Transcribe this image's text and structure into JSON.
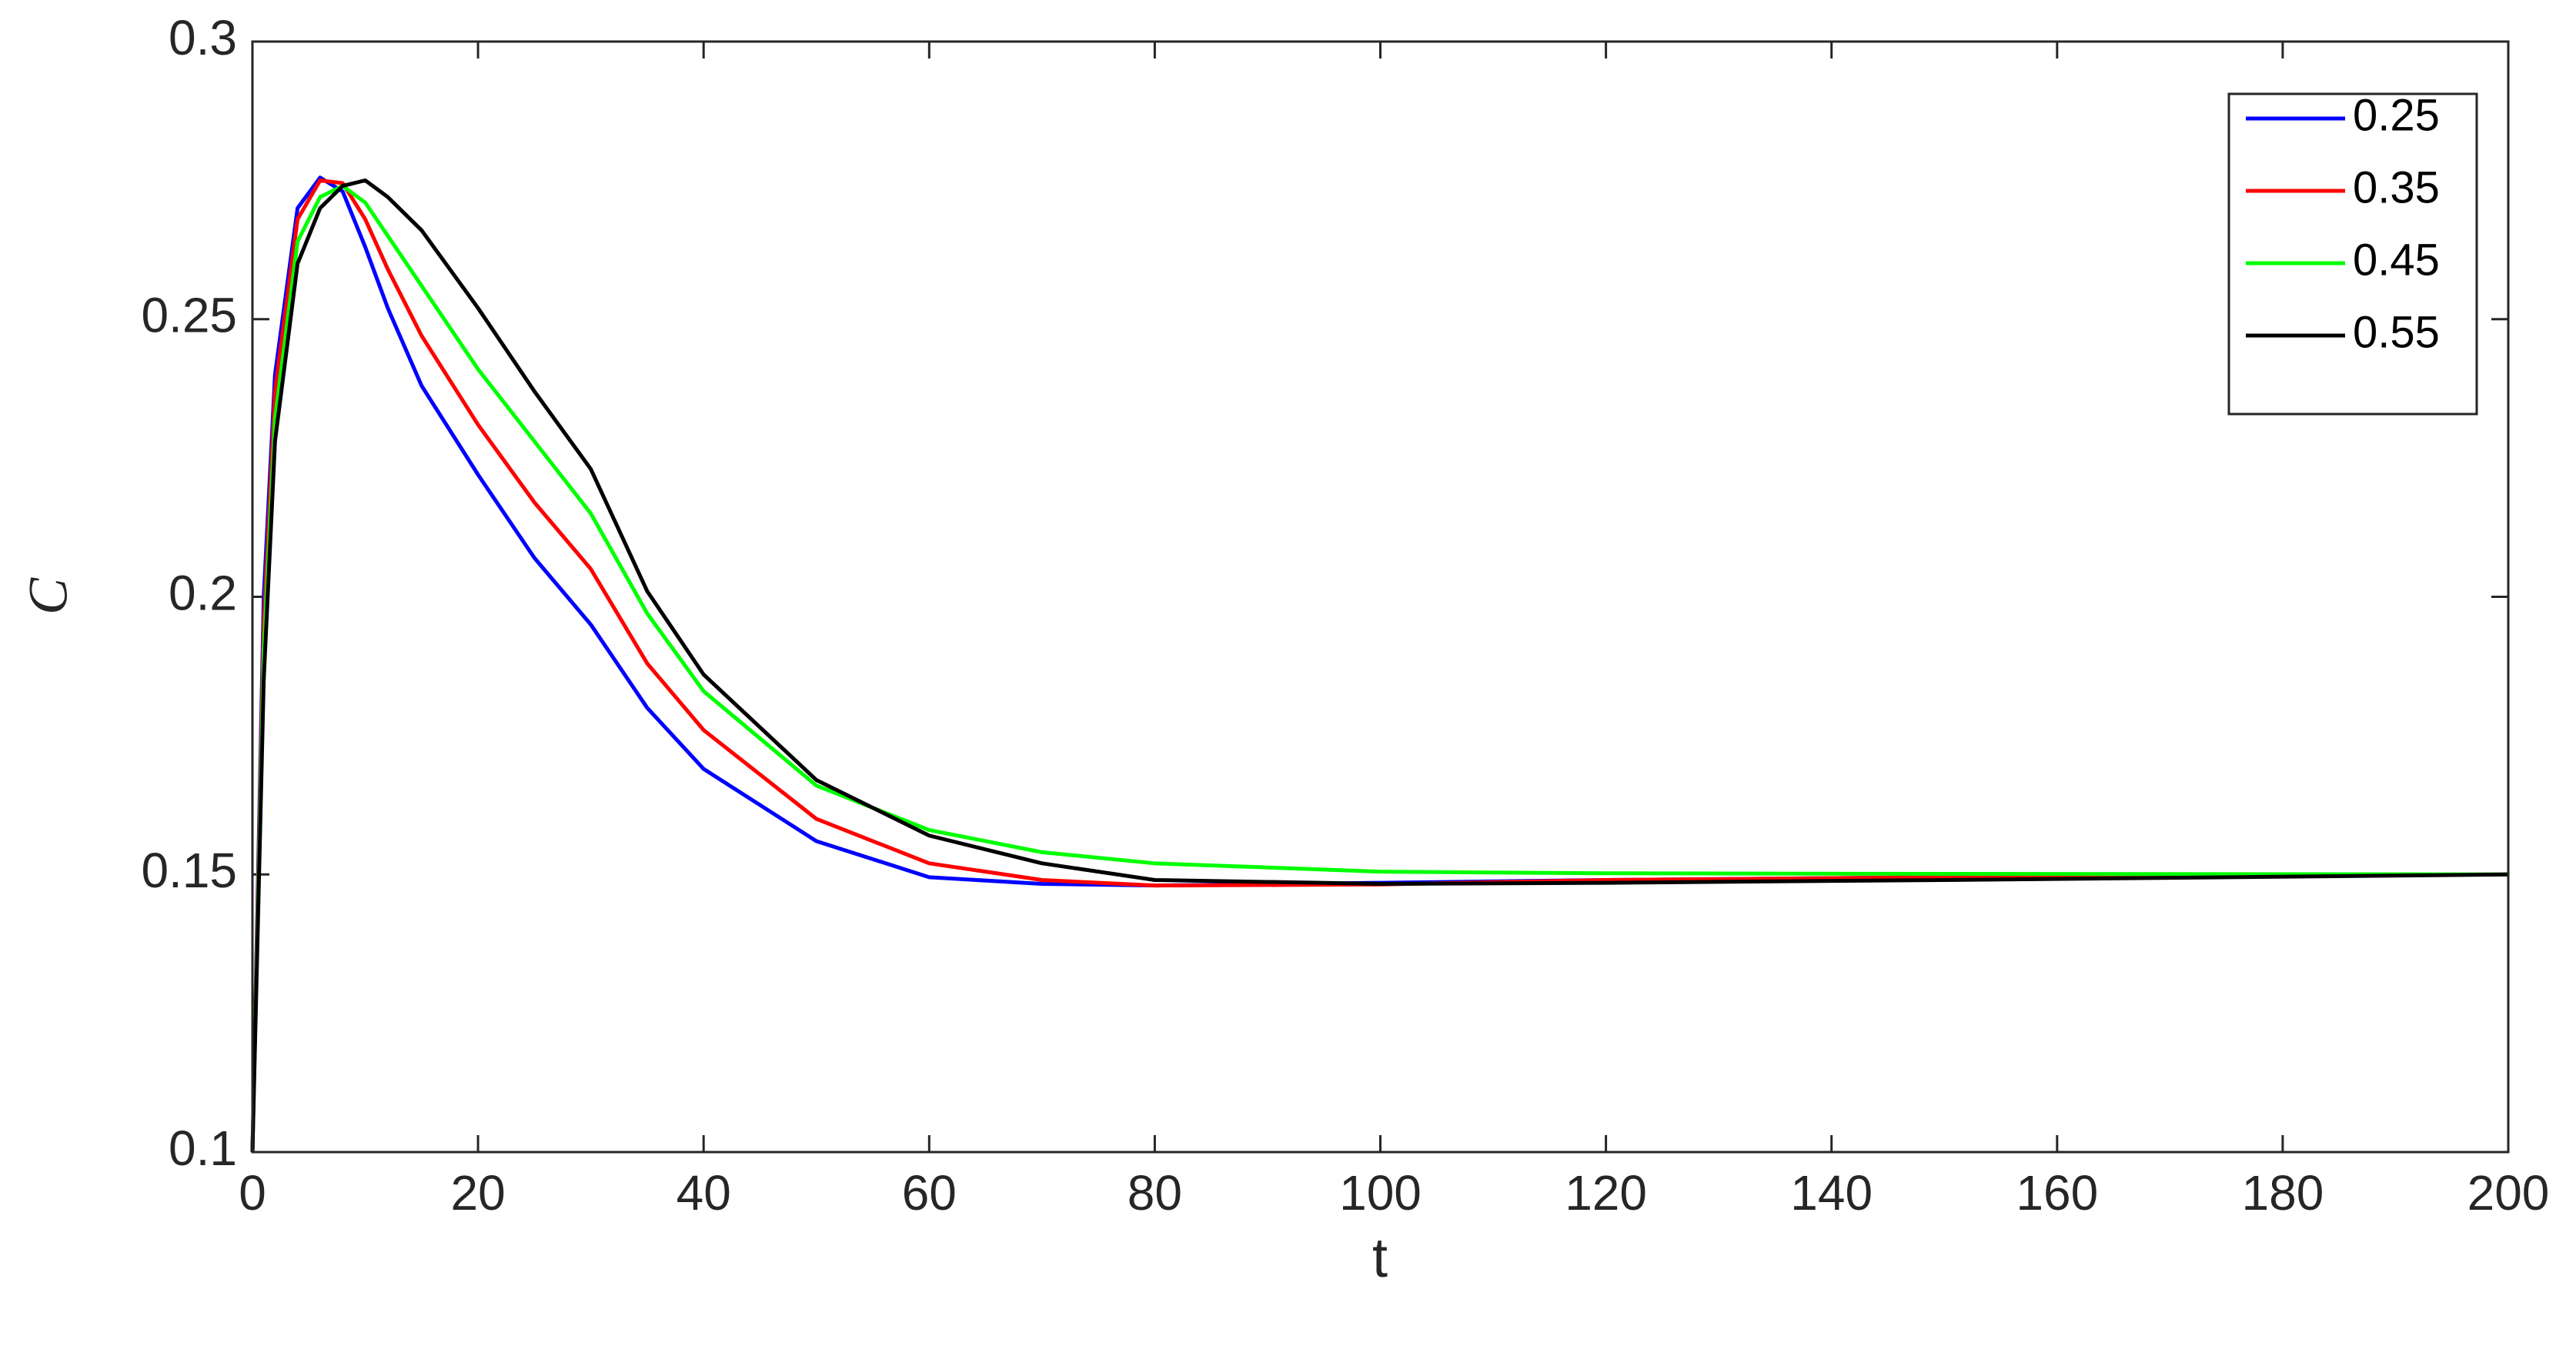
{
  "chart_data": {
    "type": "line",
    "xlabel": "t",
    "ylabel": "C",
    "x": [
      0,
      1,
      2,
      4,
      6,
      8,
      10,
      12,
      15,
      20,
      25,
      30,
      35,
      40,
      50,
      60,
      70,
      80,
      100,
      120,
      150,
      200
    ],
    "series": [
      {
        "name": "0.25",
        "color": "#0000ff",
        "values": [
          0.1,
          0.2,
          0.24,
          0.27,
          0.2755,
          0.273,
          0.263,
          0.252,
          0.238,
          0.222,
          0.207,
          0.195,
          0.18,
          0.169,
          0.156,
          0.1495,
          0.1483,
          0.148,
          0.1485,
          0.149,
          0.1495,
          0.15
        ]
      },
      {
        "name": "0.35",
        "color": "#ff0000",
        "values": [
          0.1,
          0.195,
          0.237,
          0.268,
          0.275,
          0.2745,
          0.268,
          0.259,
          0.247,
          0.231,
          0.217,
          0.205,
          0.188,
          0.176,
          0.16,
          0.152,
          0.149,
          0.148,
          0.1482,
          0.149,
          0.1495,
          0.15
        ]
      },
      {
        "name": "0.45",
        "color": "#00ff00",
        "values": [
          0.1,
          0.19,
          0.232,
          0.264,
          0.272,
          0.274,
          0.271,
          0.265,
          0.256,
          0.241,
          0.228,
          0.215,
          0.197,
          0.183,
          0.166,
          0.158,
          0.154,
          0.152,
          0.1505,
          0.1502,
          0.1501,
          0.15
        ]
      },
      {
        "name": "0.55",
        "color": "#000000",
        "values": [
          0.1,
          0.185,
          0.228,
          0.26,
          0.27,
          0.274,
          0.275,
          0.272,
          0.266,
          0.252,
          0.237,
          0.223,
          0.201,
          0.186,
          0.167,
          0.157,
          0.152,
          0.149,
          0.1483,
          0.1485,
          0.149,
          0.15
        ]
      }
    ],
    "xlim": [
      0,
      200
    ],
    "xticks": [
      0,
      20,
      40,
      60,
      80,
      100,
      120,
      140,
      160,
      180,
      200
    ],
    "ylim": [
      0.1,
      0.3
    ],
    "yticks": [
      0.1,
      0.15,
      0.2,
      0.25,
      0.3
    ],
    "legend": "upper right",
    "grid": false
  }
}
